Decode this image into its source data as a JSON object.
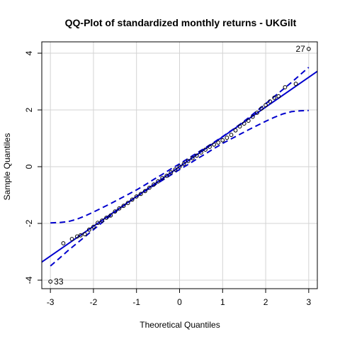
{
  "chart_data": {
    "type": "scatter",
    "title": "QQ-Plot of standardized monthly returns - UKGilt",
    "xlabel": "Theoretical Quantiles",
    "ylabel": "Sample Quantiles",
    "xlim": [
      -3.2,
      3.2
    ],
    "ylim": [
      -4.3,
      4.4
    ],
    "xticks": [
      -3,
      -2,
      -1,
      0,
      1,
      2,
      3
    ],
    "yticks": [
      -4,
      -2,
      0,
      2,
      4
    ],
    "grid": true,
    "colors": {
      "points": "#000000",
      "lines": "#0000cd",
      "grid": "#d3d3d3"
    },
    "reference_line": {
      "intercept": 0.0,
      "slope": 1.05
    },
    "envelope": {
      "x": [
        -3.0,
        -2.8,
        -2.6,
        -2.4,
        -2.2,
        -2.0,
        -1.8,
        -1.6,
        -1.4,
        -1.2,
        -1.0,
        -0.8,
        -0.6,
        -0.4,
        -0.2,
        0.0,
        0.2,
        0.4,
        0.6,
        0.8,
        1.0,
        1.2,
        1.4,
        1.6,
        1.8,
        2.0,
        2.2,
        2.4,
        2.6,
        2.8,
        3.0
      ],
      "upper": [
        -1.98,
        -1.97,
        -1.94,
        -1.86,
        -1.74,
        -1.6,
        -1.45,
        -1.3,
        -1.14,
        -0.98,
        -0.82,
        -0.64,
        -0.45,
        -0.27,
        -0.08,
        0.1,
        0.29,
        0.48,
        0.67,
        0.86,
        1.06,
        1.27,
        1.49,
        1.72,
        1.97,
        2.22,
        2.47,
        2.72,
        2.97,
        3.24,
        3.5
      ],
      "lower": [
        -3.5,
        -3.24,
        -2.97,
        -2.72,
        -2.47,
        -2.22,
        -1.97,
        -1.72,
        -1.49,
        -1.27,
        -1.06,
        -0.86,
        -0.67,
        -0.48,
        -0.29,
        -0.1,
        0.08,
        0.27,
        0.45,
        0.64,
        0.82,
        0.98,
        1.14,
        1.3,
        1.45,
        1.6,
        1.74,
        1.86,
        1.94,
        1.97,
        1.98
      ]
    },
    "points": [
      {
        "x": -3.0,
        "y": -4.05,
        "label": "33"
      },
      {
        "x": -2.7,
        "y": -2.7
      },
      {
        "x": -2.5,
        "y": -2.55
      },
      {
        "x": -2.38,
        "y": -2.46
      },
      {
        "x": -2.3,
        "y": -2.42
      },
      {
        "x": -2.2,
        "y": -2.38
      },
      {
        "x": -2.1,
        "y": -2.22
      },
      {
        "x": -2.0,
        "y": -2.12
      },
      {
        "x": -1.9,
        "y": -1.98
      },
      {
        "x": -1.8,
        "y": -1.9
      },
      {
        "x": -1.7,
        "y": -1.8
      },
      {
        "x": -1.6,
        "y": -1.72
      },
      {
        "x": -1.5,
        "y": -1.58
      },
      {
        "x": -1.4,
        "y": -1.47
      },
      {
        "x": -1.3,
        "y": -1.38
      },
      {
        "x": -1.2,
        "y": -1.28
      },
      {
        "x": -1.1,
        "y": -1.16
      },
      {
        "x": -1.0,
        "y": -1.05
      },
      {
        "x": -0.9,
        "y": -0.96
      },
      {
        "x": -0.8,
        "y": -0.86
      },
      {
        "x": -0.7,
        "y": -0.74
      },
      {
        "x": -0.6,
        "y": -0.63
      },
      {
        "x": -0.5,
        "y": -0.52
      },
      {
        "x": -0.4,
        "y": -0.4
      },
      {
        "x": -0.3,
        "y": -0.32
      },
      {
        "x": -0.2,
        "y": -0.2
      },
      {
        "x": -0.1,
        "y": -0.1
      },
      {
        "x": 0.0,
        "y": 0.0
      },
      {
        "x": 0.1,
        "y": 0.1
      },
      {
        "x": 0.2,
        "y": 0.2
      },
      {
        "x": 0.3,
        "y": 0.3
      },
      {
        "x": 0.4,
        "y": 0.39
      },
      {
        "x": 0.5,
        "y": 0.5
      },
      {
        "x": 0.6,
        "y": 0.6
      },
      {
        "x": 0.7,
        "y": 0.7
      },
      {
        "x": 0.8,
        "y": 0.78
      },
      {
        "x": 0.9,
        "y": 0.85
      },
      {
        "x": 1.0,
        "y": 0.93
      },
      {
        "x": 1.1,
        "y": 1.02
      },
      {
        "x": 1.2,
        "y": 1.12
      },
      {
        "x": 1.3,
        "y": 1.28
      },
      {
        "x": 1.4,
        "y": 1.42
      },
      {
        "x": 1.5,
        "y": 1.52
      },
      {
        "x": 1.6,
        "y": 1.62
      },
      {
        "x": 1.7,
        "y": 1.76
      },
      {
        "x": 1.8,
        "y": 1.9
      },
      {
        "x": 1.9,
        "y": 2.05
      },
      {
        "x": 2.0,
        "y": 2.17
      },
      {
        "x": 2.1,
        "y": 2.3
      },
      {
        "x": 2.2,
        "y": 2.43
      },
      {
        "x": 2.3,
        "y": 2.48
      },
      {
        "x": 2.45,
        "y": 2.8
      },
      {
        "x": 2.7,
        "y": 2.92
      },
      {
        "x": 3.0,
        "y": 4.15,
        "label": "27"
      }
    ]
  }
}
